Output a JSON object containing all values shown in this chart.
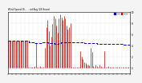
{
  "title": "Wind Speed, N...  ...nd Avg (24 Hours)",
  "background_color": "#f4f4f4",
  "plot_bg_color": "#ffffff",
  "ylim": [
    -1,
    10
  ],
  "xlim": [
    0,
    288
  ],
  "legend_labels": [
    "Avg",
    "Norm"
  ],
  "legend_colors": [
    "#0000cc",
    "#cc0000"
  ],
  "avg_line_color": "#0000cc",
  "norm_bar_color": "#cc0000",
  "avg_step_points": [
    [
      0,
      4.8
    ],
    [
      15,
      4.8
    ],
    [
      30,
      4.8
    ],
    [
      50,
      4.6
    ],
    [
      60,
      4.4
    ],
    [
      70,
      4.4
    ],
    [
      80,
      4.6
    ],
    [
      85,
      4.6
    ],
    [
      95,
      4.4
    ],
    [
      100,
      4.4
    ],
    [
      105,
      4.4
    ],
    [
      110,
      4.3
    ],
    [
      115,
      4.3
    ],
    [
      120,
      4.4
    ],
    [
      125,
      4.5
    ],
    [
      130,
      4.5
    ],
    [
      140,
      4.5
    ],
    [
      150,
      4.5
    ],
    [
      160,
      4.5
    ],
    [
      170,
      4.5
    ],
    [
      180,
      4.4
    ],
    [
      200,
      4.4
    ],
    [
      210,
      4.3
    ],
    [
      220,
      4.3
    ],
    [
      230,
      4.2
    ],
    [
      240,
      4.2
    ],
    [
      250,
      4.2
    ],
    [
      260,
      4.2
    ],
    [
      270,
      4.1
    ],
    [
      280,
      4.1
    ],
    [
      288,
      4.1
    ]
  ],
  "norm_bars": [
    [
      0,
      4.8
    ],
    [
      3,
      4.8
    ],
    [
      6,
      4.8
    ],
    [
      9,
      4.8
    ],
    [
      12,
      4.8
    ],
    [
      15,
      4.8
    ],
    [
      18,
      4.8
    ],
    [
      21,
      4.8
    ],
    [
      24,
      4.8
    ],
    [
      27,
      4.8
    ],
    [
      30,
      4.8
    ],
    [
      33,
      4.8
    ],
    [
      36,
      4.8
    ],
    [
      39,
      4.8
    ],
    [
      42,
      4.8
    ],
    [
      45,
      4.8
    ],
    [
      48,
      0.2
    ],
    [
      51,
      0.1
    ],
    [
      54,
      0.1
    ],
    [
      57,
      0.1
    ],
    [
      60,
      0.1
    ],
    [
      63,
      0.3
    ],
    [
      66,
      4.4
    ],
    [
      69,
      0.1
    ],
    [
      72,
      0.1
    ],
    [
      75,
      0.3
    ],
    [
      78,
      0.2
    ],
    [
      81,
      0.1
    ],
    [
      84,
      0.1
    ],
    [
      87,
      3.5
    ],
    [
      90,
      7.2
    ],
    [
      93,
      8.5
    ],
    [
      96,
      6.5
    ],
    [
      99,
      4.0
    ],
    [
      102,
      5.5
    ],
    [
      105,
      7.8
    ],
    [
      108,
      9.2
    ],
    [
      111,
      8.8
    ],
    [
      114,
      7.5
    ],
    [
      117,
      6.2
    ],
    [
      120,
      8.8
    ],
    [
      123,
      9.5
    ],
    [
      126,
      9.0
    ],
    [
      129,
      8.5
    ],
    [
      132,
      9.2
    ],
    [
      135,
      8.8
    ],
    [
      138,
      7.5
    ],
    [
      141,
      6.8
    ],
    [
      144,
      7.2
    ],
    [
      147,
      8.0
    ],
    [
      150,
      0.1
    ],
    [
      153,
      0.1
    ],
    [
      156,
      0.1
    ],
    [
      159,
      0.1
    ],
    [
      162,
      0.1
    ],
    [
      165,
      0.1
    ],
    [
      168,
      0.1
    ],
    [
      171,
      3.0
    ],
    [
      174,
      2.0
    ],
    [
      177,
      1.5
    ],
    [
      180,
      1.0
    ],
    [
      183,
      0.8
    ],
    [
      186,
      0.6
    ],
    [
      189,
      0.5
    ],
    [
      192,
      0.4
    ],
    [
      195,
      3.5
    ],
    [
      198,
      2.8
    ],
    [
      201,
      0.3
    ],
    [
      204,
      0.2
    ],
    [
      207,
      0.5
    ],
    [
      210,
      0.3
    ],
    [
      213,
      0.2
    ],
    [
      216,
      0.5
    ],
    [
      219,
      0.3
    ],
    [
      222,
      0.2
    ],
    [
      225,
      0.2
    ],
    [
      228,
      3.0
    ],
    [
      231,
      0.2
    ],
    [
      234,
      0.2
    ],
    [
      237,
      0.3
    ],
    [
      240,
      0.2
    ],
    [
      243,
      0.2
    ],
    [
      246,
      0.2
    ],
    [
      249,
      0.2
    ],
    [
      252,
      0.2
    ],
    [
      255,
      0.2
    ],
    [
      258,
      0.2
    ],
    [
      261,
      0.2
    ],
    [
      264,
      0.2
    ],
    [
      267,
      0.1
    ],
    [
      270,
      0.1
    ],
    [
      273,
      0.2
    ],
    [
      276,
      0.1
    ],
    [
      279,
      0.1
    ],
    [
      282,
      0.1
    ],
    [
      285,
      0.1
    ],
    [
      288,
      0.1
    ]
  ],
  "ytick_positions": [
    0,
    2,
    4,
    6,
    8,
    10
  ],
  "ylabel_right": [
    "0",
    "2",
    "4",
    "6",
    "8",
    "10"
  ],
  "xtick_count": 30
}
